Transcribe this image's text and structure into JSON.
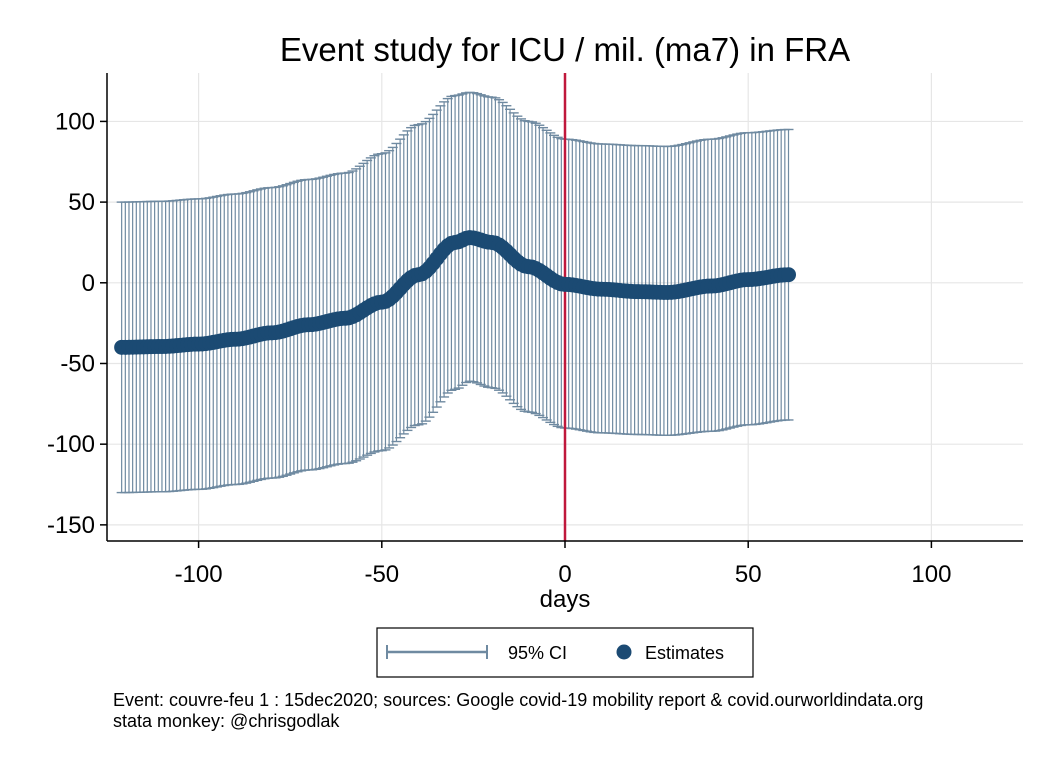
{
  "chart_data": {
    "type": "scatter",
    "title": "Event study for ICU / mil. (ma7) in FRA",
    "xlabel": "days",
    "ylabel": "",
    "xlim": [
      -125,
      125
    ],
    "ylim": [
      -160,
      130
    ],
    "x_ticks": [
      -100,
      -50,
      0,
      50,
      100
    ],
    "y_ticks": [
      100,
      50,
      0,
      -50,
      -100,
      -150
    ],
    "x_tick_labels": [
      "-100",
      "-50",
      "0",
      "50",
      "100"
    ],
    "y_tick_labels": [
      "100",
      "50",
      "0",
      "-50",
      "-100",
      "-150"
    ],
    "grid": true,
    "event_line": {
      "x": 0,
      "color": "#c0183c"
    },
    "x_range": [
      -121,
      61
    ],
    "estimate_knots": {
      "x": [
        -121,
        -110,
        -100,
        -90,
        -80,
        -70,
        -60,
        -50,
        -40,
        -30,
        -26,
        -20,
        -10,
        0,
        10,
        20,
        28,
        40,
        50,
        61
      ],
      "y": [
        -40,
        -39.5,
        -38,
        -35,
        -31,
        -26,
        -22,
        -12,
        5,
        25,
        28,
        25,
        10,
        -1,
        -4,
        -5.5,
        -6,
        -2,
        2,
        5
      ]
    },
    "ci_upper_knots": {
      "x": [
        -121,
        -110,
        -100,
        -90,
        -80,
        -70,
        -60,
        -50,
        -40,
        -30,
        -26,
        -20,
        -10,
        0,
        10,
        20,
        28,
        40,
        50,
        61
      ],
      "y": [
        50,
        50.5,
        52,
        55,
        59,
        64,
        68,
        80,
        98,
        116,
        118,
        115,
        100,
        89,
        86,
        85,
        84.5,
        89,
        93,
        95
      ]
    },
    "ci_lower_knots": {
      "x": [
        -121,
        -110,
        -100,
        -90,
        -80,
        -70,
        -60,
        -50,
        -40,
        -30,
        -26,
        -20,
        -10,
        0,
        10,
        20,
        28,
        40,
        50,
        61
      ],
      "y": [
        -130,
        -129.5,
        -128,
        -125,
        -121,
        -116,
        -112,
        -104,
        -88,
        -66,
        -61,
        -65,
        -80,
        -90,
        -93,
        -94,
        -94.5,
        -92,
        -88,
        -85
      ]
    },
    "legend": {
      "position": "bottom",
      "entries": [
        "95% CI",
        "Estimates"
      ]
    },
    "colors": {
      "ci": "#6f8aa1",
      "estimate": "#1b4a73",
      "event": "#c0183c",
      "grid": "#e6e6e6"
    }
  },
  "notes": {
    "line1": "Event: couvre-feu 1 : 15dec2020; sources: Google covid-19 mobility report & covid.ourworldindata.org",
    "line2": "stata monkey: @chrisgodlak"
  }
}
